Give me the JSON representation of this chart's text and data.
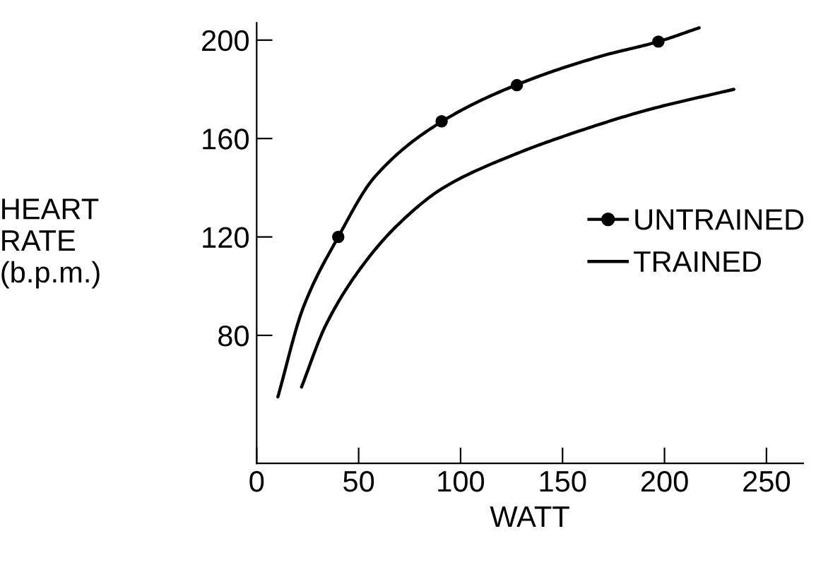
{
  "chart_data": {
    "type": "line",
    "xlabel": "WATT",
    "ylabel": "HEART\nRATE\n(b.p.m.)",
    "xlim": [
      0,
      268
    ],
    "ylim": [
      28,
      207
    ],
    "xticks": [
      0,
      50,
      100,
      150,
      200,
      250
    ],
    "yticks": [
      80,
      120,
      160,
      200
    ],
    "grid": false,
    "legend": "right",
    "series": [
      {
        "name": "UNTRAINED",
        "color": "#000000",
        "marker": "none",
        "x": [
          10.4,
          22.7,
          40,
          58,
          91,
          128,
          169,
          197,
          217
        ],
        "values": [
          55,
          91,
          120,
          144.5,
          167,
          182,
          193.5,
          199.4,
          205
        ]
      },
      {
        "type": "scatter",
        "color": "#000000",
        "marker": "circle",
        "x": [
          40,
          90.7,
          127.6,
          197
        ],
        "values": [
          120,
          167,
          181.7,
          199.4
        ]
      },
      {
        "name": "TRAINED",
        "color": "#000000",
        "marker": "none",
        "x": [
          22,
          33.8,
          51.6,
          69.3,
          91.6,
          127,
          158,
          191.6,
          234
        ],
        "values": [
          59,
          84,
          108,
          125,
          140,
          153.7,
          163,
          171.6,
          180
        ]
      }
    ]
  }
}
